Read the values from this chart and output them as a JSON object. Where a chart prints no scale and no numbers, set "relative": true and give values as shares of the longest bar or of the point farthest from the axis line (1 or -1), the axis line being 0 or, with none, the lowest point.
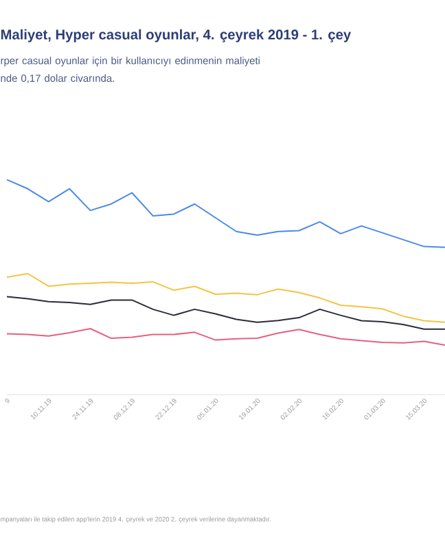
{
  "chart_data": {
    "type": "line",
    "relative": true,
    "title": "Maliyet, Hyper casual oyunlar, 4. çeyrek 2019 - 1. çey",
    "subtitle": "rper casual oyunlar için bir kullanıcıyı edinmenin maliyeti\nnde 0,17 dolar civarında.",
    "annotations": [
      "mpanyaları ile takip edilen app'lerin 2019 4. çeyrek ve 2020 2. çeyrek verilerine dayanmaktadır."
    ],
    "categories": [
      "9",
      null,
      "10.11.19",
      null,
      "24.11.19",
      null,
      "08.12.19",
      null,
      "22.12.19",
      null,
      "05.01.20",
      null,
      "19.01.20",
      null,
      "02.02.20",
      null,
      "16.02.20",
      null,
      "01.03.20",
      null,
      "15.03.20",
      null
    ],
    "series": [
      {
        "color": "#4a8ae8",
        "values": [
          1,
          0.958,
          0.898,
          0.958,
          0.857,
          0.887,
          0.939,
          0.832,
          0.84,
          0.887,
          0.823,
          0.759,
          0.742,
          0.759,
          0.763,
          0.804,
          0.749,
          0.785,
          0.753,
          0.721,
          0.689,
          0.685
        ]
      },
      {
        "color": "#f5c342",
        "values": [
          0.546,
          0.563,
          0.504,
          0.514,
          0.518,
          0.523,
          0.518,
          0.525,
          0.486,
          0.504,
          0.467,
          0.472,
          0.465,
          0.491,
          0.475,
          0.45,
          0.416,
          0.409,
          0.399,
          0.365,
          0.344,
          0.337
        ]
      },
      {
        "color": "#2b2b3a",
        "values": [
          0.456,
          0.446,
          0.433,
          0.429,
          0.42,
          0.44,
          0.44,
          0.397,
          0.369,
          0.397,
          0.376,
          0.35,
          0.337,
          0.345,
          0.358,
          0.397,
          0.369,
          0.344,
          0.339,
          0.326,
          0.305,
          0.305
        ]
      },
      {
        "color": "#e5607f",
        "values": [
          0.283,
          0.28,
          0.273,
          0.288,
          0.307,
          0.262,
          0.267,
          0.28,
          0.28,
          0.29,
          0.254,
          0.26,
          0.262,
          0.286,
          0.303,
          0.28,
          0.26,
          0.251,
          0.243,
          0.241,
          0.248,
          0.23
        ]
      }
    ],
    "marker": "none",
    "line_style": "solid"
  }
}
